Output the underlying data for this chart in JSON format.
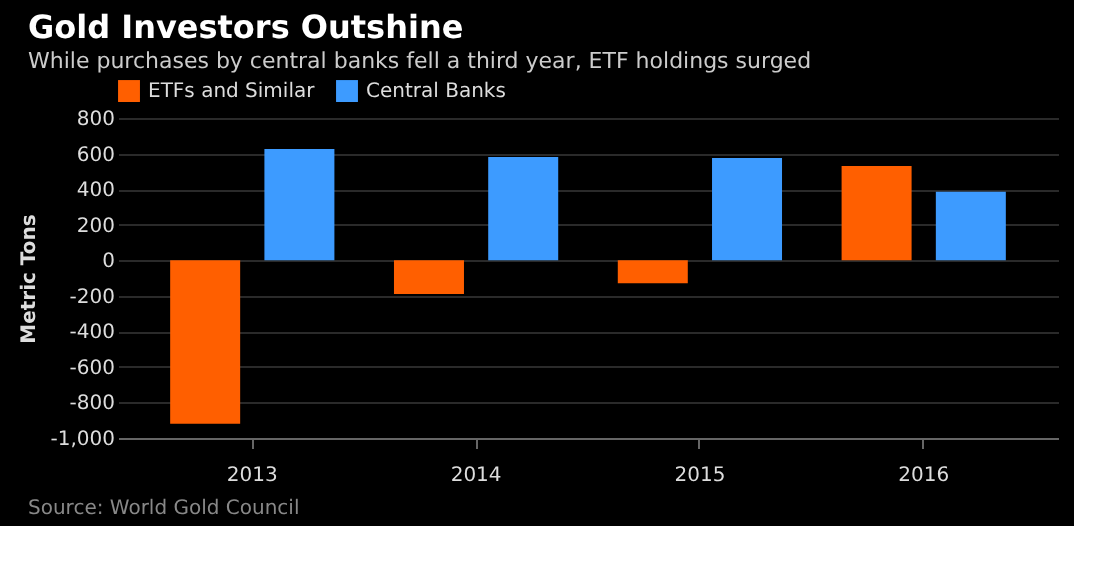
{
  "chart_data": {
    "type": "bar",
    "title": "Gold Investors Outshine",
    "subtitle": "While purchases by central banks fell a third year, ETF holdings surged",
    "ylabel": "Metric Tons",
    "categories": [
      "2013",
      "2014",
      "2015",
      "2016"
    ],
    "series": [
      {
        "name": "ETFs and Similar",
        "color": "#ff5f00",
        "values": [
          -920,
          -190,
          -130,
          530
        ]
      },
      {
        "name": "Central Banks",
        "color": "#3d9bff",
        "values": [
          625,
          580,
          575,
          385
        ]
      }
    ],
    "ylim": [
      -1000,
      800
    ],
    "yticks": [
      {
        "value": -1000,
        "label": "-1,000"
      },
      -800,
      -600,
      -400,
      -200,
      0,
      200,
      400,
      600,
      800
    ],
    "grid": "y",
    "legend": "top left",
    "annotations": [
      "Source: World Gold Council"
    ]
  }
}
